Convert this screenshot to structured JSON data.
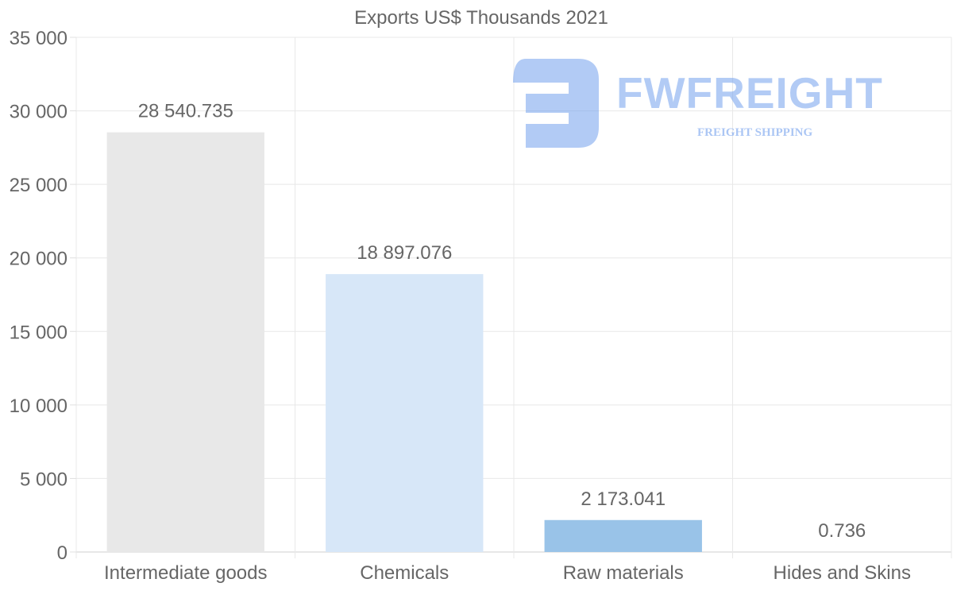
{
  "chart_data": {
    "type": "bar",
    "title": "Exports US$ Thousands 2021",
    "categories": [
      "Intermediate goods",
      "Chemicals",
      "Raw materials",
      "Hides and Skins"
    ],
    "values": [
      28540.735,
      18897.076,
      2173.041,
      0.736
    ],
    "data_labels": [
      "28 540.735",
      "18 897.076",
      "2 173.041",
      "0.736"
    ],
    "bar_colors": [
      "#e8e8e8",
      "#d7e7f8",
      "#99c3e8",
      "#c9e5f3"
    ],
    "ylim": [
      0,
      35000
    ],
    "yticks": [
      0,
      5000,
      10000,
      15000,
      20000,
      25000,
      30000,
      35000
    ],
    "ytick_labels": [
      "0",
      "5 000",
      "10 000",
      "15 000",
      "20 000",
      "25 000",
      "30 000",
      "35 000"
    ],
    "xlabel": "",
    "ylabel": "",
    "grid": true,
    "legend": "none"
  },
  "watermark": {
    "name": "FWFREIGHT",
    "tagline": "FREIGHT SHIPPING",
    "color": "#73a0ec"
  }
}
